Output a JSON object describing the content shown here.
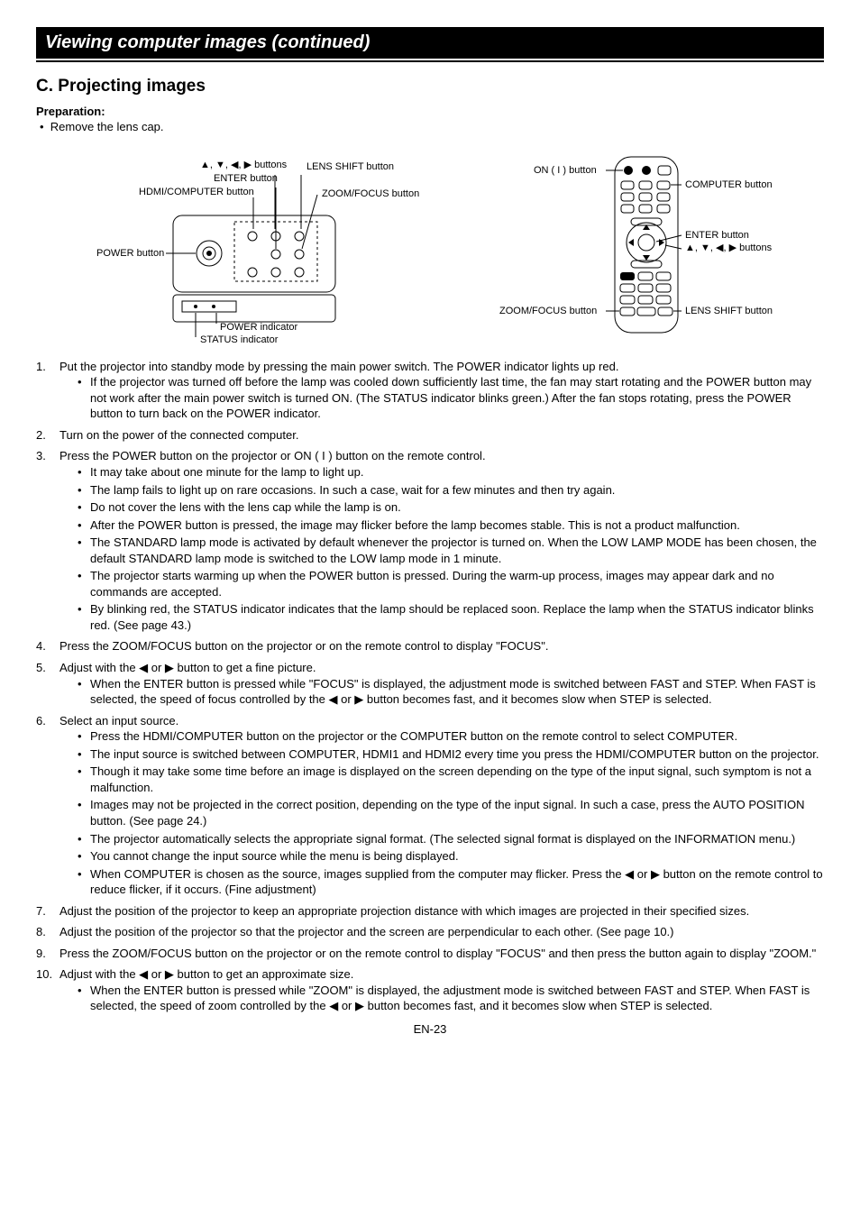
{
  "header": {
    "title": "Viewing computer images (continued)"
  },
  "section": {
    "letter_title": "C. Projecting images",
    "prep_label": "Preparation:",
    "prep_item": "Remove the lens cap."
  },
  "diagram_left": {
    "arrows_label": "▲, ▼, ◀, ▶ buttons",
    "enter": "ENTER button",
    "hdmi": "HDMI/COMPUTER button",
    "power": "POWER button",
    "lens_shift": "LENS SHIFT button",
    "zoom_focus": "ZOOM/FOCUS button",
    "power_ind": "POWER indicator",
    "status_ind": "STATUS indicator"
  },
  "diagram_right": {
    "on": "ON ( I ) button",
    "computer": "COMPUTER button",
    "enter": "ENTER button",
    "arrows_label": "▲, ▼, ◀, ▶ buttons",
    "zoom_focus": "ZOOM/FOCUS button",
    "lens_shift": "LENS SHIFT button"
  },
  "steps": [
    {
      "text": "Put the projector into standby mode by pressing the main power switch. The POWER indicator lights up red.",
      "sub": [
        "If the projector was turned off before the lamp was cooled down sufficiently last time, the fan may start rotating and the POWER button may not work after the main power switch is turned ON. (The STATUS indicator blinks green.) After the fan stops rotating, press the POWER button to turn back on the POWER indicator."
      ]
    },
    {
      "text": "Turn on the power of the connected computer.",
      "sub": []
    },
    {
      "text": "Press the POWER button on the projector or ON ( I ) button on the remote control.",
      "sub": [
        "It may take about one minute for the lamp to light up.",
        "The lamp fails to light up on rare occasions. In such a case, wait for a few minutes and then try again.",
        "Do not cover the lens with the lens cap while the lamp is on.",
        "After the POWER button is pressed, the image may flicker before the lamp becomes stable. This is not a product malfunction.",
        "The STANDARD lamp mode is activated by default whenever the projector is turned on. When the LOW LAMP MODE has been chosen, the default STANDARD lamp mode is switched to the LOW lamp mode in 1 minute.",
        "The projector starts warming up when the POWER button is pressed. During the warm-up process, images may appear dark and no commands are accepted.",
        "By blinking red, the STATUS indicator indicates that the lamp should be replaced soon. Replace the lamp when the STATUS indicator blinks red. (See page 43.)"
      ]
    },
    {
      "text": "Press the ZOOM/FOCUS button on the projector or on the remote control to display \"FOCUS\".",
      "sub": []
    },
    {
      "text": "Adjust with the ◀ or ▶ button to get a fine picture.",
      "sub": [
        "When the ENTER button is pressed while \"FOCUS\" is displayed, the adjustment mode is switched between FAST and STEP. When FAST is selected, the speed of focus controlled by the ◀ or ▶ button becomes fast, and it becomes slow when STEP is selected."
      ]
    },
    {
      "text": "Select an input source.",
      "sub": [
        "Press the HDMI/COMPUTER button on the projector or the COMPUTER button on the remote control to select COMPUTER.",
        "The input source is switched between COMPUTER, HDMI1 and HDMI2 every time you press the HDMI/COMPUTER button on the projector.",
        "Though it may take some time before an image is displayed on the screen depending on the type of the input signal, such symptom is not a malfunction.",
        "Images may not be projected in the correct position, depending on the type of the input signal. In such a case, press the AUTO POSITION button. (See page 24.)",
        "The projector automatically selects the appropriate signal format. (The selected signal format is displayed on the INFORMATION menu.)",
        "You cannot change the input source while the menu is being displayed.",
        "When COMPUTER is chosen as the source, images supplied from the computer may flicker. Press the ◀ or ▶ button on the remote control to reduce flicker, if it occurs. (Fine adjustment)"
      ]
    },
    {
      "text": "Adjust the position of the projector to keep an appropriate projection distance with which images are projected in their specified sizes.",
      "sub": []
    },
    {
      "text": "Adjust the position of the projector so that the projector and the screen are perpendicular to each other. (See page 10.)",
      "sub": []
    },
    {
      "text": "Press the ZOOM/FOCUS button on the projector or on the remote control to display \"FOCUS\" and then press the button again to display \"ZOOM.\"",
      "sub": []
    },
    {
      "text": "Adjust with the ◀ or ▶ button to get an approximate size.",
      "sub": [
        "When the ENTER button is pressed while \"ZOOM\" is displayed, the adjustment mode is switched between FAST and STEP. When FAST is selected, the speed of zoom controlled by the ◀ or ▶ button becomes fast, and it becomes slow when STEP is selected."
      ]
    }
  ],
  "page_number": "EN-23"
}
